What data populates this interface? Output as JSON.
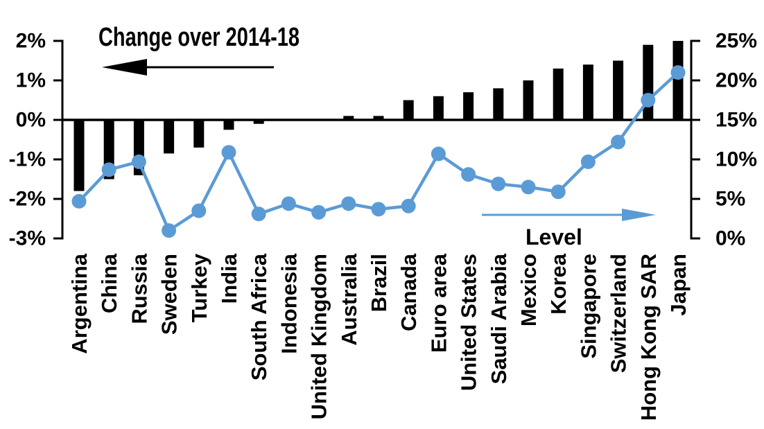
{
  "annotations": {
    "bars_label": "Change over 2014-18",
    "line_label": "Level"
  },
  "colors": {
    "bar": "#000000",
    "line": "#5B9BD5",
    "background": "#FFFFFF",
    "text": "#000000"
  },
  "chart_data": {
    "type": "combo: bar + line, dual y-axes",
    "categories": [
      "Argentina",
      "China",
      "Russia",
      "Sweden",
      "Turkey",
      "India",
      "South Africa",
      "Indonesia",
      "United Kingdom",
      "Australia",
      "Brazil",
      "Canada",
      "Euro area",
      "United States",
      "Saudi Arabia",
      "Mexico",
      "Korea",
      "Singapore",
      "Switzerland",
      "Hong Kong SAR",
      "Japan"
    ],
    "series": [
      {
        "name": "Change over 2014-18",
        "type": "bar",
        "axis": "left",
        "unit": "percentage points",
        "color": "#000000",
        "values": [
          -1.8,
          -1.5,
          -1.4,
          -0.85,
          -0.7,
          -0.25,
          -0.1,
          0.0,
          0.0,
          0.1,
          0.1,
          0.5,
          0.6,
          0.7,
          0.8,
          1.0,
          1.3,
          1.4,
          1.5,
          1.9,
          2.0
        ]
      },
      {
        "name": "Level",
        "type": "line",
        "axis": "right",
        "unit": "percent",
        "color": "#5B9BD5",
        "values": [
          4.7,
          8.7,
          9.7,
          1.0,
          3.5,
          10.9,
          3.1,
          4.4,
          3.3,
          4.4,
          3.7,
          4.1,
          10.7,
          8.1,
          6.9,
          6.5,
          5.9,
          9.7,
          12.2,
          17.5,
          21.0
        ]
      }
    ],
    "left_axis": {
      "range": [
        -3,
        2
      ],
      "tick_values": [
        2,
        1,
        0,
        -1,
        -2,
        -3
      ],
      "tick_labels": [
        "2%",
        "1%",
        "0%",
        "-1%",
        "-2%",
        "-3%"
      ]
    },
    "right_axis": {
      "range": [
        0,
        25
      ],
      "tick_values": [
        25,
        20,
        15,
        10,
        5,
        0
      ],
      "tick_labels": [
        "25%",
        "20%",
        "15%",
        "10%",
        "5%",
        "0%"
      ]
    },
    "grid": false,
    "legend_position": "in-plot annotations with directional arrows"
  }
}
